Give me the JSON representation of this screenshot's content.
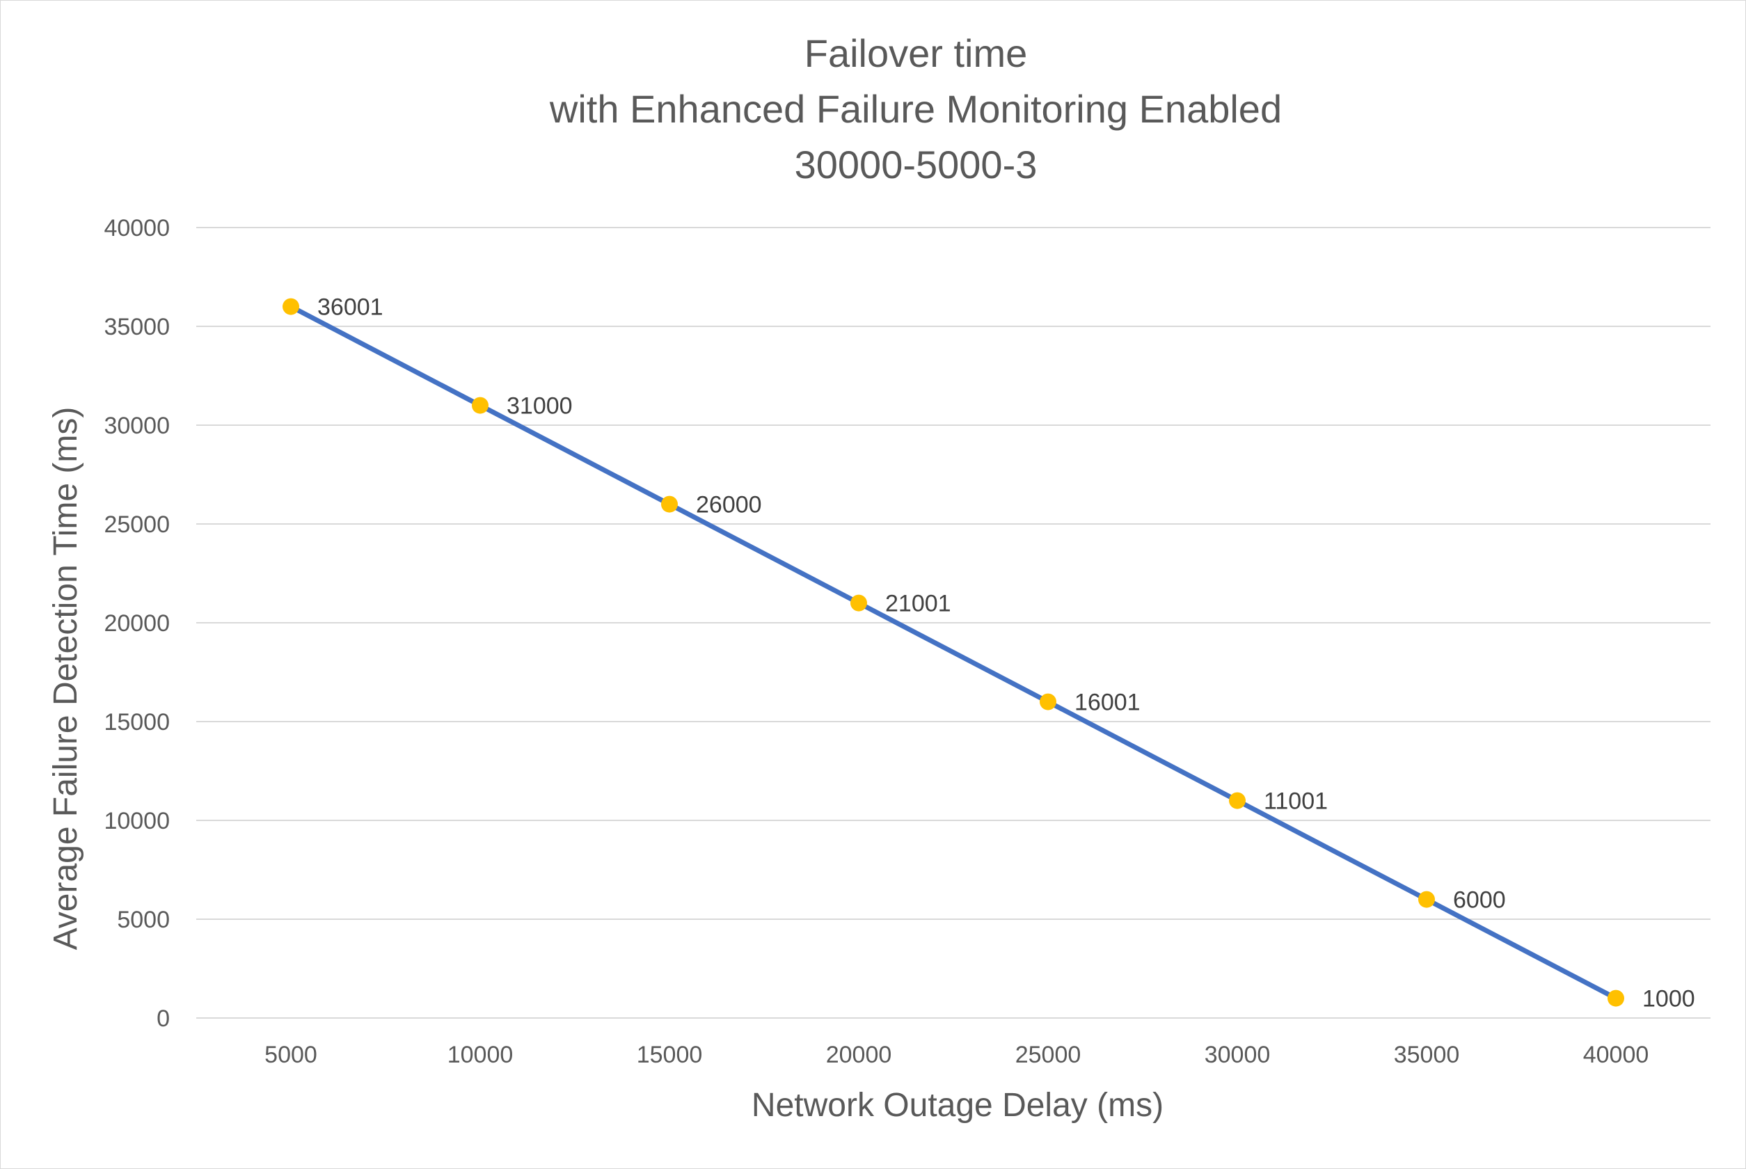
{
  "chart_data": {
    "type": "line",
    "title_lines": [
      "Failover time",
      "with Enhanced Failure Monitoring Enabled",
      "30000-5000-3"
    ],
    "xlabel": "Network Outage Delay (ms)",
    "ylabel": "Average Failure Detection Time (ms)",
    "categories": [
      "5000",
      "10000",
      "15000",
      "20000",
      "25000",
      "30000",
      "35000",
      "40000"
    ],
    "series": [
      {
        "values": [
          36001,
          31000,
          26000,
          21001,
          16001,
          11001,
          6000,
          1000
        ]
      }
    ],
    "ylim": [
      0,
      40000
    ],
    "yticks": [
      "0",
      "5000",
      "10000",
      "15000",
      "20000",
      "25000",
      "30000",
      "35000",
      "40000"
    ],
    "grid": true,
    "data_labels": true,
    "legend": "none",
    "colors": {
      "line": "#4472C4",
      "marker": "#FFC000",
      "grid": "#d9d9d9",
      "text": "#595959"
    }
  }
}
